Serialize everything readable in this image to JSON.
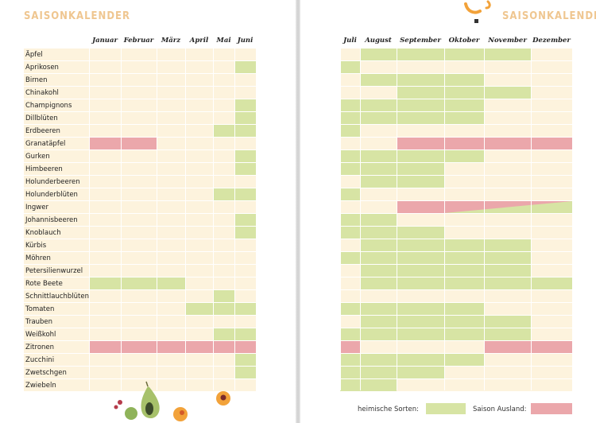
{
  "left_page": {
    "title": "SAISONKALENDER",
    "months": [
      "Januar",
      "Februar",
      "März",
      "April",
      "Mai",
      "Juni"
    ]
  },
  "right_page": {
    "title": "SAISONKALENDER",
    "months": [
      "Juli",
      "August",
      "September",
      "Oktober",
      "November",
      "Dezember"
    ]
  },
  "produce": [
    "Äpfel",
    "Aprikosen",
    "Birnen",
    "Chinakohl",
    "Champignons",
    "Dillblüten",
    "Erdbeeren",
    "Granatäpfel",
    "Gurken",
    "Himbeeren",
    "Holunderbeeren",
    "Holunderblüten",
    "Ingwer",
    "Johannisbeeren",
    "Knoblauch",
    "Kürbis",
    "Möhren",
    "Petersilienwurzel",
    "Rote Beete",
    "Schnittlauchblüten",
    "Tomaten",
    "Trauben",
    "Weißkohl",
    "Zitronen",
    "Zucchini",
    "Zwetschgen",
    "Zwiebeln"
  ],
  "legend": {
    "heimisch_label": "heimische Sorten:",
    "ausland_label": "Saison Ausland:"
  },
  "colors": {
    "row_stripe": "#fdf3dd",
    "heimisch": "#d7e4a4",
    "ausland": "#eba7ab",
    "title": "#efc690",
    "background": "#ffffff"
  },
  "season_calendar": {
    "months_order": [
      "Jan",
      "Feb",
      "Mär",
      "Apr",
      "Mai",
      "Jun",
      "Jul",
      "Aug",
      "Sep",
      "Okt",
      "Nov",
      "Dez"
    ],
    "entries": [
      {
        "item": "Äpfel",
        "heimisch": [
          8,
          9,
          10,
          11
        ],
        "ausland": []
      },
      {
        "item": "Aprikosen",
        "heimisch": [
          6,
          7
        ],
        "ausland": []
      },
      {
        "item": "Birnen",
        "heimisch": [
          8,
          9,
          10
        ],
        "ausland": []
      },
      {
        "item": "Chinakohl",
        "heimisch": [
          9,
          10,
          11
        ],
        "ausland": []
      },
      {
        "item": "Champignons",
        "heimisch": [
          6,
          7,
          8,
          9,
          10
        ],
        "ausland": []
      },
      {
        "item": "Dillblüten",
        "heimisch": [
          6,
          7,
          8,
          9,
          10
        ],
        "ausland": []
      },
      {
        "item": "Erdbeeren",
        "heimisch": [
          5,
          6,
          7
        ],
        "ausland": []
      },
      {
        "item": "Granatäpfel",
        "heimisch": [],
        "ausland": [
          1,
          2,
          9,
          10,
          11,
          12
        ]
      },
      {
        "item": "Gurken",
        "heimisch": [
          6,
          7,
          8,
          9,
          10
        ],
        "ausland": []
      },
      {
        "item": "Himbeeren",
        "heimisch": [
          6,
          7,
          8,
          9
        ],
        "ausland": []
      },
      {
        "item": "Holunderbeeren",
        "heimisch": [
          8,
          9
        ],
        "ausland": []
      },
      {
        "item": "Holunderblüten",
        "heimisch": [
          5,
          6,
          7
        ],
        "ausland": []
      },
      {
        "item": "Ingwer",
        "heimisch": [
          10,
          11,
          12
        ],
        "ausland": [
          9,
          10,
          11,
          12
        ]
      },
      {
        "item": "Johannisbeeren",
        "heimisch": [
          6,
          7,
          8
        ],
        "ausland": []
      },
      {
        "item": "Knoblauch",
        "heimisch": [
          6,
          7,
          8,
          9
        ],
        "ausland": []
      },
      {
        "item": "Kürbis",
        "heimisch": [
          8,
          9,
          10,
          11
        ],
        "ausland": []
      },
      {
        "item": "Möhren",
        "heimisch": [
          7,
          8,
          9,
          10,
          11
        ],
        "ausland": []
      },
      {
        "item": "Petersilienwurzel",
        "heimisch": [
          8,
          9,
          10,
          11
        ],
        "ausland": []
      },
      {
        "item": "Rote Beete",
        "heimisch": [
          1,
          2,
          3,
          8,
          9,
          10,
          11,
          12
        ],
        "ausland": []
      },
      {
        "item": "Schnittlauchblüten",
        "heimisch": [
          5
        ],
        "ausland": []
      },
      {
        "item": "Tomaten",
        "heimisch": [
          4,
          5,
          6,
          7,
          8,
          9,
          10
        ],
        "ausland": []
      },
      {
        "item": "Trauben",
        "heimisch": [
          8,
          9,
          10,
          11
        ],
        "ausland": []
      },
      {
        "item": "Weißkohl",
        "heimisch": [
          5,
          6,
          7,
          8,
          9,
          10,
          11
        ],
        "ausland": []
      },
      {
        "item": "Zitronen",
        "heimisch": [],
        "ausland": [
          1,
          2,
          3,
          4,
          5,
          6,
          7,
          11,
          12
        ]
      },
      {
        "item": "Zucchini",
        "heimisch": [
          6,
          7,
          8,
          9,
          10
        ],
        "ausland": []
      },
      {
        "item": "Zwetschgen",
        "heimisch": [
          6,
          7,
          8,
          9
        ],
        "ausland": []
      },
      {
        "item": "Zwiebeln",
        "heimisch": [
          7,
          8
        ],
        "ausland": []
      }
    ]
  }
}
